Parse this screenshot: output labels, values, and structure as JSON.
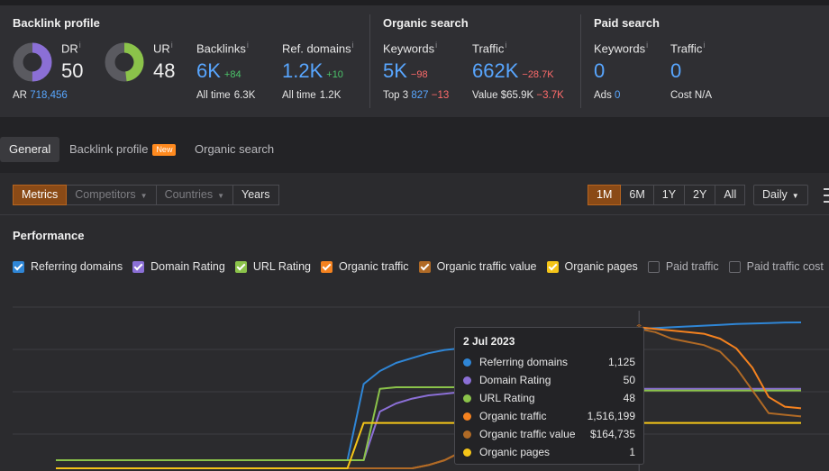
{
  "backlink_profile": {
    "title": "Backlink profile",
    "dr": {
      "label": "DR",
      "value": "50",
      "info": "i",
      "fill_fraction": 0.5
    },
    "ur": {
      "label": "UR",
      "value": "48",
      "info": "i",
      "fill_fraction": 0.48
    },
    "ar": {
      "label": "AR",
      "value": "718,456"
    },
    "backlinks": {
      "label": "Backlinks",
      "info": "i",
      "value": "6K",
      "delta": "+84",
      "sub_label": "All time",
      "sub_value": "6.3K"
    },
    "ref_domains": {
      "label": "Ref. domains",
      "info": "i",
      "value": "1.2K",
      "delta": "+10",
      "sub_label": "All time",
      "sub_value": "1.2K"
    }
  },
  "organic_search": {
    "title": "Organic search",
    "keywords": {
      "label": "Keywords",
      "info": "i",
      "value": "5K",
      "delta": "−98",
      "sub_label": "Top 3",
      "sub_value": "827",
      "sub_delta": "−13"
    },
    "traffic": {
      "label": "Traffic",
      "info": "i",
      "value": "662K",
      "delta": "−28.7K",
      "sub_label": "Value",
      "sub_value": "$65.9K",
      "sub_delta": "−3.7K"
    }
  },
  "paid_search": {
    "title": "Paid search",
    "keywords": {
      "label": "Keywords",
      "info": "i",
      "value": "0",
      "sub_label": "Ads",
      "sub_value": "0"
    },
    "traffic": {
      "label": "Traffic",
      "info": "i",
      "value": "0",
      "sub_label": "Cost",
      "sub_value": "N/A"
    }
  },
  "tabs": [
    {
      "label": "General",
      "active": true
    },
    {
      "label": "Backlink profile",
      "badge": "New"
    },
    {
      "label": "Organic search"
    }
  ],
  "toolbar": {
    "modes": [
      {
        "label": "Metrics",
        "active": true
      },
      {
        "label": "Competitors",
        "disabled": true
      },
      {
        "label": "Countries",
        "disabled": true
      },
      {
        "label": "Years"
      }
    ],
    "ranges": [
      {
        "label": "1M",
        "active": true
      },
      {
        "label": "6M"
      },
      {
        "label": "1Y"
      },
      {
        "label": "2Y"
      },
      {
        "label": "All"
      }
    ],
    "granularity": "Daily",
    "menu_icon": "more-vertical-icon"
  },
  "performance": {
    "title": "Performance",
    "legend": [
      {
        "label": "Referring domains",
        "checked": true,
        "color": "#2f86d6"
      },
      {
        "label": "Domain Rating",
        "checked": true,
        "color": "#8b6fd6"
      },
      {
        "label": "URL Rating",
        "checked": true,
        "color": "#8bc34a"
      },
      {
        "label": "Organic traffic",
        "checked": true,
        "color": "#f5821f"
      },
      {
        "label": "Organic traffic value",
        "checked": true,
        "color": "#b06a26"
      },
      {
        "label": "Organic pages",
        "checked": true,
        "color": "#f5c518"
      },
      {
        "label": "Paid traffic",
        "checked": false,
        "color": "#888888"
      },
      {
        "label": "Paid traffic cost",
        "checked": false,
        "color": "#888888"
      }
    ]
  },
  "tooltip": {
    "date": "2 Jul 2023",
    "rows": [
      {
        "name": "Referring domains",
        "value": "1,125",
        "color": "#2f86d6"
      },
      {
        "name": "Domain Rating",
        "value": "50",
        "color": "#8b6fd6"
      },
      {
        "name": "URL Rating",
        "value": "48",
        "color": "#8bc34a"
      },
      {
        "name": "Organic traffic",
        "value": "1,516,199",
        "color": "#f5821f"
      },
      {
        "name": "Organic traffic value",
        "value": "$164,735",
        "color": "#b06a26"
      },
      {
        "name": "Organic pages",
        "value": "1",
        "color": "#f5c518"
      }
    ]
  },
  "chart_data": {
    "type": "line",
    "x_count": 47,
    "hover_index": 36,
    "series": [
      {
        "name": "Referring domains",
        "color": "#2f86d6",
        "values": [
          0.05,
          0.05,
          0.05,
          0.05,
          0.05,
          0.05,
          0.05,
          0.05,
          0.05,
          0.05,
          0.05,
          0.05,
          0.05,
          0.05,
          0.05,
          0.05,
          0.05,
          0.05,
          0.05,
          0.52,
          0.6,
          0.65,
          0.68,
          0.71,
          0.73,
          0.74,
          0.76,
          0.77,
          0.79,
          0.8,
          0.81,
          0.82,
          0.83,
          0.84,
          0.845,
          0.85,
          0.86,
          0.865,
          0.87,
          0.875,
          0.88,
          0.885,
          0.89,
          0.893,
          0.896,
          0.899,
          0.9
        ]
      },
      {
        "name": "Domain Rating",
        "color": "#8b6fd6",
        "values": [
          0.05,
          0.05,
          0.05,
          0.05,
          0.05,
          0.05,
          0.05,
          0.05,
          0.05,
          0.05,
          0.05,
          0.05,
          0.05,
          0.05,
          0.05,
          0.05,
          0.05,
          0.05,
          0.05,
          0.05,
          0.35,
          0.4,
          0.43,
          0.45,
          0.46,
          0.47,
          0.47,
          0.47,
          0.47,
          0.48,
          0.48,
          0.48,
          0.48,
          0.48,
          0.48,
          0.48,
          0.49,
          0.49,
          0.49,
          0.49,
          0.49,
          0.49,
          0.49,
          0.49,
          0.49,
          0.49,
          0.49
        ]
      },
      {
        "name": "URL Rating",
        "color": "#8bc34a",
        "values": [
          0.05,
          0.05,
          0.05,
          0.05,
          0.05,
          0.05,
          0.05,
          0.05,
          0.05,
          0.05,
          0.05,
          0.05,
          0.05,
          0.05,
          0.05,
          0.05,
          0.05,
          0.05,
          0.05,
          0.05,
          0.49,
          0.5,
          0.5,
          0.5,
          0.5,
          0.5,
          0.5,
          0.5,
          0.5,
          0.5,
          0.5,
          0.5,
          0.5,
          0.5,
          0.5,
          0.5,
          0.48,
          0.48,
          0.48,
          0.48,
          0.48,
          0.48,
          0.48,
          0.48,
          0.48,
          0.48,
          0.48
        ]
      },
      {
        "name": "Organic traffic",
        "color": "#f5821f",
        "values": [
          0.0,
          0.0,
          0.0,
          0.0,
          0.0,
          0.0,
          0.0,
          0.0,
          0.0,
          0.0,
          0.0,
          0.0,
          0.0,
          0.0,
          0.0,
          0.0,
          0.0,
          0.0,
          0.0,
          0.0,
          0.0,
          0.0,
          0.0,
          0.02,
          0.05,
          0.1,
          0.14,
          0.15,
          0.2,
          0.3,
          0.4,
          0.5,
          0.6,
          0.7,
          0.78,
          0.84,
          0.87,
          0.86,
          0.85,
          0.84,
          0.83,
          0.8,
          0.74,
          0.62,
          0.44,
          0.38,
          0.37
        ]
      },
      {
        "name": "Organic traffic value",
        "color": "#b06a26",
        "values": [
          0.0,
          0.0,
          0.0,
          0.0,
          0.0,
          0.0,
          0.0,
          0.0,
          0.0,
          0.0,
          0.0,
          0.0,
          0.0,
          0.0,
          0.0,
          0.0,
          0.0,
          0.0,
          0.0,
          0.0,
          0.0,
          0.0,
          0.0,
          0.02,
          0.05,
          0.1,
          0.14,
          0.15,
          0.18,
          0.26,
          0.36,
          0.46,
          0.56,
          0.66,
          0.75,
          0.82,
          0.86,
          0.84,
          0.8,
          0.78,
          0.76,
          0.72,
          0.62,
          0.48,
          0.34,
          0.33,
          0.32
        ]
      },
      {
        "name": "Organic pages",
        "color": "#f5c518",
        "values": [
          0.0,
          0.0,
          0.0,
          0.0,
          0.0,
          0.0,
          0.0,
          0.0,
          0.0,
          0.0,
          0.0,
          0.0,
          0.0,
          0.0,
          0.0,
          0.0,
          0.0,
          0.0,
          0.0,
          0.28,
          0.28,
          0.28,
          0.28,
          0.28,
          0.28,
          0.28,
          0.28,
          0.28,
          0.28,
          0.28,
          0.28,
          0.28,
          0.28,
          0.28,
          0.28,
          0.28,
          0.28,
          0.28,
          0.28,
          0.28,
          0.28,
          0.28,
          0.28,
          0.28,
          0.28,
          0.28,
          0.28
        ]
      }
    ]
  }
}
